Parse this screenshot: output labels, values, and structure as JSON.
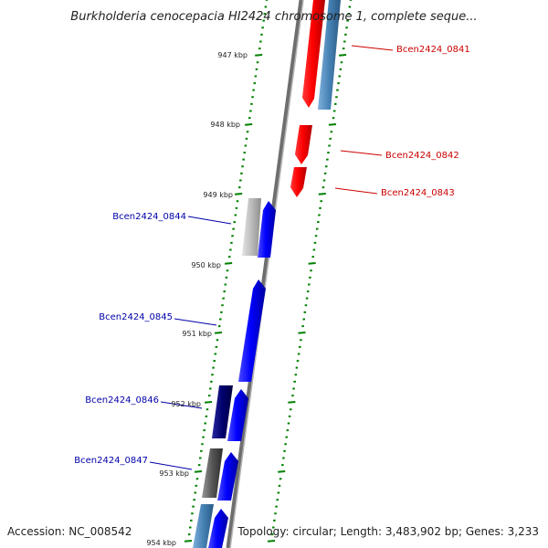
{
  "title": "Burkholderia cenocepacia HI2424 chromosome 1, complete seque...",
  "footer": {
    "accession": "Accession: NC_008542",
    "topology": "Topology: circular; Length: 3,483,902 bp; Genes: 3,233"
  },
  "ticks": [
    "947 kbp",
    "948 kbp",
    "949 kbp",
    "950 kbp",
    "951 kbp",
    "952 kbp",
    "953 kbp",
    "954 kbp"
  ],
  "gene_labels": {
    "forward": [
      "Bcen2424_0841",
      "Bcen2424_0842",
      "Bcen2424_0843"
    ],
    "reverse": [
      "Bcen2424_0844",
      "Bcen2424_0845",
      "Bcen2424_0846",
      "Bcen2424_0847"
    ]
  },
  "colors": {
    "forward_cds": "#ff0000",
    "reverse_cds": "#0000ff",
    "backbone": "#808080",
    "tick": "#008000",
    "forward_label": "#cc0000",
    "reverse_label": "#0000aa",
    "feature_steelblue": "#4682b4",
    "feature_gray": "#bbbbbb",
    "feature_navy": "#00006e",
    "feature_dimgray": "#555555"
  }
}
